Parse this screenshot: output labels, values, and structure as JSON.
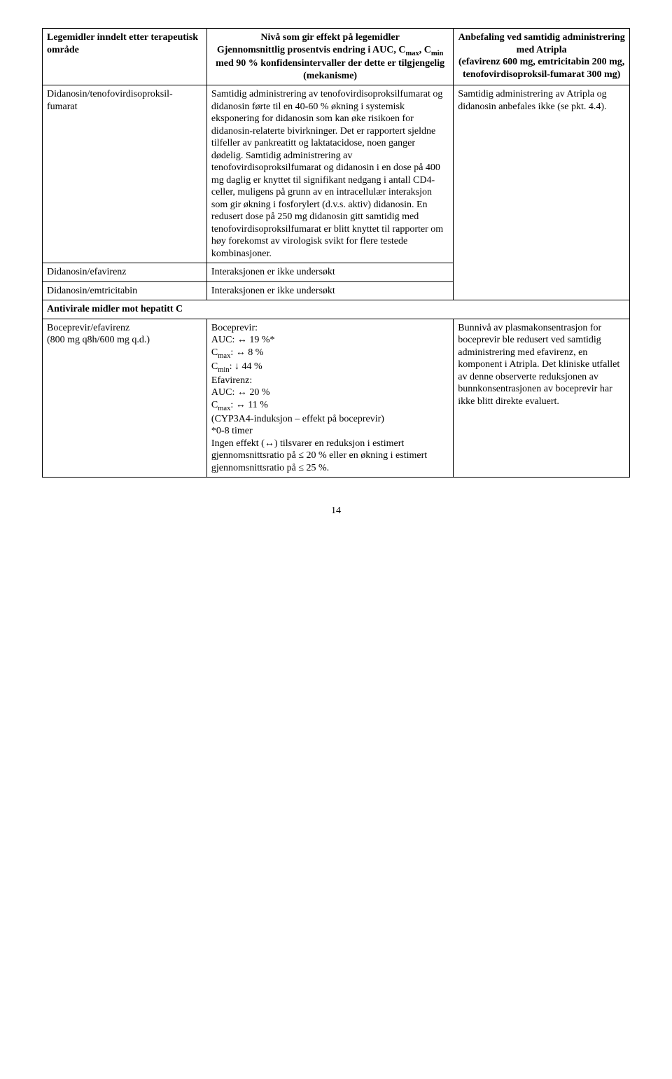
{
  "header": {
    "col1": "Legemidler inndelt etter terapeutisk område",
    "col2_line1": "Nivå som gir effekt på legemidler",
    "col2_line2": "Gjennomsnittlig prosentvis endring i AUC, C",
    "col2_max": "max",
    "col2_sep": ", C",
    "col2_min": "min",
    "col2_line2b": " med 90 % konfidensintervaller der dette er tilgjengelig",
    "col2_line3": "(mekanisme)",
    "col3_line1": "Anbefaling ved samtidig administrering med Atripla",
    "col3_line2": "(efavirenz 600 mg, emtricitabin 200 mg, tenofovirdisoproksil-fumarat 300 mg)"
  },
  "row1": {
    "c1": "Didanosin/tenofovirdisoproksil-fumarat",
    "c2": "Samtidig administrering av tenofovirdisoproksilfumarat og didanosin førte til en 40-60 % økning i systemisk eksponering for didanosin som kan øke risikoen for didanosin-relaterte bivirkninger. Det er rapportert sjeldne tilfeller av pankreatitt og laktatacidose, noen ganger dødelig. Samtidig administrering av tenofovirdisoproksilfumarat og didanosin i en dose på 400 mg daglig er knyttet til signifikant nedgang i antall CD4-celler, muligens på grunn av en intracellulær interaksjon som gir økning i fosforylert (d.v.s. aktiv) didanosin. En redusert dose på 250 mg didanosin gitt samtidig med tenofovirdisoproksilfumarat er blitt knyttet til rapporter om høy forekomst av virologisk svikt for flere testede kombinasjoner.",
    "c3": "Samtidig administrering av Atripla og didanosin anbefales ikke (se pkt. 4.4)."
  },
  "row2": {
    "c1": "Didanosin/efavirenz",
    "c2": "Interaksjonen er ikke undersøkt"
  },
  "row3": {
    "c1": "Didanosin/emtricitabin",
    "c2": "Interaksjonen er ikke undersøkt"
  },
  "section": "Antivirale midler mot hepatitt C",
  "row4": {
    "c1": "Boceprevir/efavirenz\n(800 mg q8h/600 mg q.d.)",
    "c2_l1": "Boceprevir:",
    "c2_l2a": "AUC: ↔ 19 %*",
    "c2_l3a": "C",
    "c2_l3b": "max",
    "c2_l3c": ": ↔ 8 %",
    "c2_l4a": "C",
    "c2_l4b": "min",
    "c2_l4c": ": ↓ 44 %",
    "c2_l5": "Efavirenz:",
    "c2_l6": "AUC: ↔ 20 %",
    "c2_l7a": "C",
    "c2_l7b": "max",
    "c2_l7c": ": ↔ 11 %",
    "c2_l8": "(CYP3A4-induksjon – effekt på boceprevir)",
    "c2_l9": "*0-8 timer",
    "c2_l10": "Ingen effekt (↔) tilsvarer en reduksjon i estimert gjennomsnittsratio på ≤ 20 % eller en økning i estimert gjennomsnittsratio på ≤ 25 %.",
    "c3": "Bunnivå av plasmakonsentrasjon for boceprevir ble redusert ved samtidig administrering med efavirenz, en komponent i Atripla. Det kliniske utfallet av denne observerte reduksjonen av bunnkonsentrasjonen av boceprevir har ikke blitt direkte evaluert."
  },
  "pagenum": "14"
}
